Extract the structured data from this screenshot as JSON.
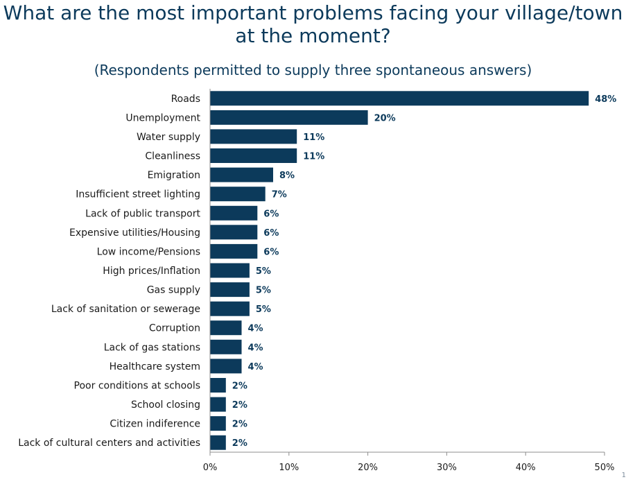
{
  "chart_data": {
    "type": "bar",
    "orientation": "horizontal",
    "title": "What are the most important problems facing your village/town at the moment?",
    "subtitle": "(Respondents permitted to supply three spontaneous answers)",
    "categories": [
      "Roads",
      "Unemployment",
      "Water supply",
      "Cleanliness",
      "Emigration",
      "Insufficient street lighting",
      "Lack of public transport",
      "Expensive utilities/Housing",
      "Low income/Pensions",
      "High prices/Inflation",
      "Gas supply",
      "Lack of sanitation or sewerage",
      "Corruption",
      "Lack of gas stations",
      "Healthcare system",
      "Poor conditions at schools",
      "School closing",
      "Citizen indiference",
      "Lack of cultural centers and activities"
    ],
    "values": [
      48,
      20,
      11,
      11,
      8,
      7,
      6,
      6,
      6,
      5,
      5,
      5,
      4,
      4,
      4,
      2,
      2,
      2,
      2
    ],
    "value_labels": [
      "48%",
      "20%",
      "11%",
      "11%",
      "8%",
      "7%",
      "6%",
      "6%",
      "6%",
      "5%",
      "5%",
      "5%",
      "4%",
      "4%",
      "4%",
      "2%",
      "2%",
      "2%",
      "2%"
    ],
    "xticks": [
      0,
      10,
      20,
      30,
      40,
      50
    ],
    "xtick_labels": [
      "0%",
      "10%",
      "20%",
      "30%",
      "40%",
      "50%"
    ],
    "xlim": [
      0,
      50
    ],
    "grid": false,
    "legend": "none",
    "bar_color": "#0c3a5b"
  },
  "page_number": "1"
}
